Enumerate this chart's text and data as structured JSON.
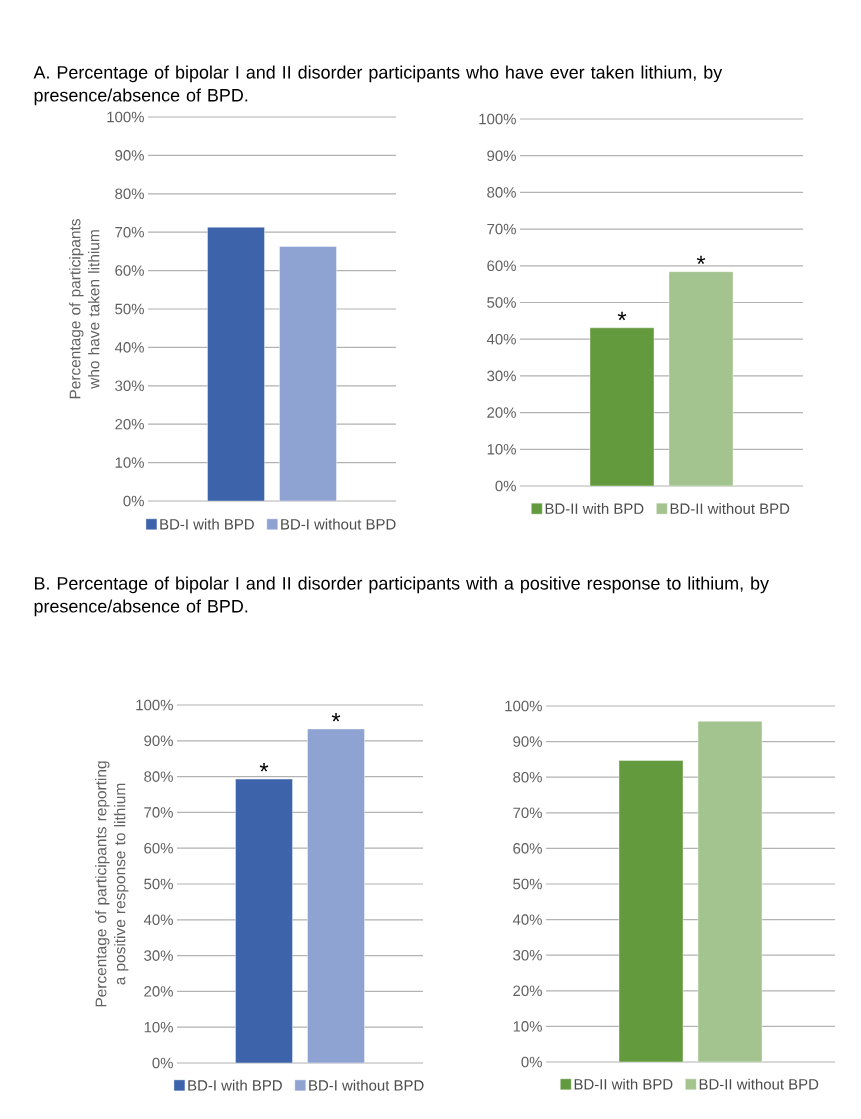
{
  "chart_data": [
    {
      "type": "bar",
      "title": "A. Percentage of bipolar I and II disorder participants who have ever taken lithium, by presence/absence of BPD.",
      "ylabel": "Percentage of  participants who have taken lithium",
      "categories": [
        null
      ],
      "series": [
        {
          "name": "BD-I with BPD",
          "color": "#3d64ab",
          "values": [
            71.3
          ]
        },
        {
          "name": "BD-I without BPD",
          "color": "#8fa3d3",
          "values": [
            66.3
          ]
        }
      ],
      "ylim": [
        0,
        100
      ],
      "yticks": [
        {
          "value": 0,
          "label": "0%"
        },
        {
          "value": 10,
          "label": "10%"
        },
        {
          "value": 20,
          "label": "20%"
        },
        {
          "value": 30,
          "label": "30%"
        },
        {
          "value": 40,
          "label": "40%"
        },
        {
          "value": 50,
          "label": "50%"
        },
        {
          "value": 60,
          "label": "60%"
        },
        {
          "value": 70,
          "label": "70%"
        },
        {
          "value": 80,
          "label": "80%"
        },
        {
          "value": 90,
          "label": "90%"
        },
        {
          "value": 100,
          "label": "100%"
        }
      ],
      "grid": "y",
      "legend": "bottom"
    },
    {
      "type": "bar",
      "categories": [
        null
      ],
      "series": [
        {
          "name": "BD-II with BPD",
          "color": "#639a3e",
          "values": [
            43.1
          ]
        },
        {
          "name": "BD-II without BPD",
          "color": "#a3c48f",
          "values": [
            58.4
          ]
        }
      ],
      "ylim": [
        0,
        100
      ],
      "yticks": [
        {
          "value": 0,
          "label": "0%"
        },
        {
          "value": 10,
          "label": "10%"
        },
        {
          "value": 20,
          "label": "20%"
        },
        {
          "value": 30,
          "label": "30%"
        },
        {
          "value": 40,
          "label": "40%"
        },
        {
          "value": 50,
          "label": "50%"
        },
        {
          "value": 60,
          "label": "60%"
        },
        {
          "value": 70,
          "label": "70%"
        },
        {
          "value": 80,
          "label": "80%"
        },
        {
          "value": 90,
          "label": "90%"
        },
        {
          "value": 100,
          "label": "100%"
        }
      ],
      "annotations": [
        {
          "text": "*",
          "y": 43.1
        },
        {
          "text": "*",
          "y": 58.4
        }
      ],
      "grid": "y",
      "legend": "bottom"
    },
    {
      "type": "bar",
      "title": "B. Percentage of bipolar I and II disorder participants with a positive response to lithium, by presence/absence of BPD.",
      "ylabel": "Percentage of  participants reporting a positive response to lithium",
      "categories": [
        null
      ],
      "series": [
        {
          "name": "BD-I with BPD",
          "color": "#3d64ab",
          "values": [
            79.3
          ]
        },
        {
          "name": "BD-I without BPD",
          "color": "#8fa3d3",
          "values": [
            93.3
          ]
        }
      ],
      "ylim": [
        0,
        100
      ],
      "yticks": [
        {
          "value": 0,
          "label": "0%"
        },
        {
          "value": 10,
          "label": "10%"
        },
        {
          "value": 20,
          "label": "20%"
        },
        {
          "value": 30,
          "label": "30%"
        },
        {
          "value": 40,
          "label": "40%"
        },
        {
          "value": 50,
          "label": "50%"
        },
        {
          "value": 60,
          "label": "60%"
        },
        {
          "value": 70,
          "label": "70%"
        },
        {
          "value": 80,
          "label": "80%"
        },
        {
          "value": 90,
          "label": "90%"
        },
        {
          "value": 100,
          "label": "100%"
        }
      ],
      "annotations": [
        {
          "text": "*",
          "y": 79.3
        },
        {
          "text": "*",
          "y": 93.3
        }
      ],
      "grid": "y",
      "legend": "bottom"
    },
    {
      "type": "bar",
      "categories": [
        null
      ],
      "series": [
        {
          "name": "BD-II with BPD",
          "color": "#639a3e",
          "values": [
            84.7
          ]
        },
        {
          "name": "BD-II without BPD",
          "color": "#a3c48f",
          "values": [
            95.7
          ]
        }
      ],
      "ylim": [
        0,
        100
      ],
      "yticks": [
        {
          "value": 0,
          "label": "0%"
        },
        {
          "value": 10,
          "label": "10%"
        },
        {
          "value": 20,
          "label": "20%"
        },
        {
          "value": 30,
          "label": "30%"
        },
        {
          "value": 40,
          "label": "40%"
        },
        {
          "value": 50,
          "label": "50%"
        },
        {
          "value": 60,
          "label": "60%"
        },
        {
          "value": 70,
          "label": "70%"
        },
        {
          "value": 80,
          "label": "80%"
        },
        {
          "value": 90,
          "label": "90%"
        },
        {
          "value": 100,
          "label": "100%"
        }
      ],
      "grid": "y",
      "legend": "bottom"
    }
  ]
}
